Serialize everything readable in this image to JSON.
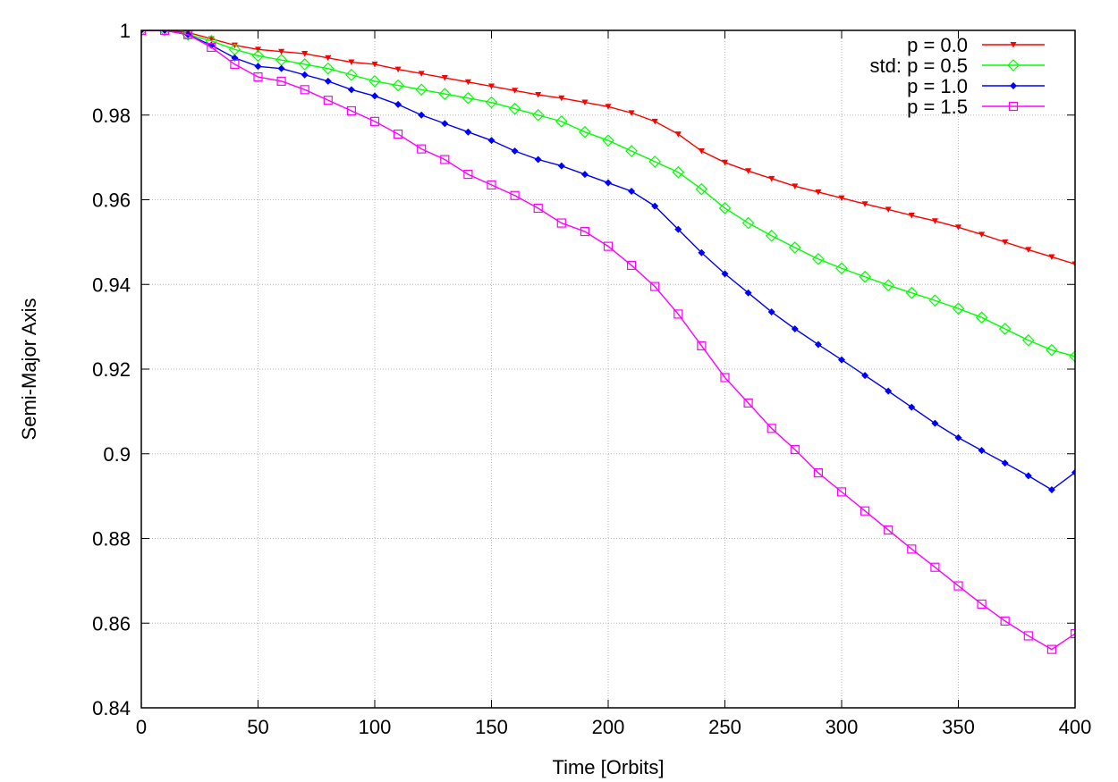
{
  "chart_data": {
    "type": "line",
    "title": "",
    "xlabel": "Time [Orbits]",
    "ylabel": "Semi-Major Axis",
    "xlim": [
      0,
      400
    ],
    "ylim": [
      0.84,
      1.0
    ],
    "xticks": [
      0,
      50,
      100,
      150,
      200,
      250,
      300,
      350,
      400
    ],
    "xtick_labels": [
      "0",
      "50",
      "100",
      "150",
      "200",
      "250",
      "300",
      "350",
      "400"
    ],
    "yticks": [
      0.84,
      0.86,
      0.88,
      0.9,
      0.92,
      0.94,
      0.96,
      0.98,
      1.0
    ],
    "ytick_labels": [
      "0.84",
      "0.86",
      "0.88",
      "0.9",
      "0.92",
      "0.94",
      "0.96",
      "0.98",
      "1"
    ],
    "grid": true,
    "legend_position": "top-right",
    "series": [
      {
        "name": "p = 0.0",
        "color": "#ff0000",
        "marker": "triangle-down",
        "x": [
          0,
          10,
          20,
          30,
          40,
          50,
          60,
          70,
          80,
          90,
          100,
          110,
          120,
          130,
          140,
          150,
          160,
          170,
          180,
          190,
          200,
          210,
          220,
          230,
          240,
          250,
          260,
          270,
          280,
          290,
          300,
          310,
          320,
          330,
          340,
          350,
          360,
          370,
          380,
          390,
          400
        ],
        "y": [
          1.0,
          1.0,
          0.9995,
          0.998,
          0.9965,
          0.9955,
          0.995,
          0.9945,
          0.9935,
          0.9925,
          0.992,
          0.9908,
          0.9898,
          0.9888,
          0.9878,
          0.9868,
          0.9858,
          0.9848,
          0.984,
          0.983,
          0.982,
          0.9805,
          0.9785,
          0.9755,
          0.9715,
          0.9688,
          0.9668,
          0.965,
          0.9632,
          0.9618,
          0.9604,
          0.959,
          0.9577,
          0.9563,
          0.955,
          0.9535,
          0.9518,
          0.95,
          0.9482,
          0.9465,
          0.9448
        ]
      },
      {
        "name": "std: p = 0.5",
        "color": "#00ff00",
        "marker": "diamond-open",
        "x": [
          0,
          10,
          20,
          30,
          40,
          50,
          60,
          70,
          80,
          90,
          100,
          110,
          120,
          130,
          140,
          150,
          160,
          170,
          180,
          190,
          200,
          210,
          220,
          230,
          240,
          250,
          260,
          270,
          280,
          290,
          300,
          310,
          320,
          330,
          340,
          350,
          360,
          370,
          380,
          390,
          400
        ],
        "y": [
          1.0,
          1.0,
          0.999,
          0.9975,
          0.9955,
          0.994,
          0.993,
          0.992,
          0.991,
          0.9895,
          0.988,
          0.987,
          0.986,
          0.985,
          0.984,
          0.983,
          0.9815,
          0.98,
          0.9785,
          0.976,
          0.974,
          0.9715,
          0.969,
          0.9665,
          0.9625,
          0.958,
          0.9545,
          0.9515,
          0.9487,
          0.946,
          0.9438,
          0.9418,
          0.9398,
          0.938,
          0.9362,
          0.9343,
          0.9322,
          0.9295,
          0.9268,
          0.9245,
          0.923
        ]
      },
      {
        "name": "p = 1.0",
        "color": "#0000ff",
        "marker": "diamond-filled",
        "x": [
          0,
          10,
          20,
          30,
          40,
          50,
          60,
          70,
          80,
          90,
          100,
          110,
          120,
          130,
          140,
          150,
          160,
          170,
          180,
          190,
          200,
          210,
          220,
          230,
          240,
          250,
          260,
          270,
          280,
          290,
          300,
          310,
          320,
          330,
          340,
          350,
          360,
          370,
          380,
          390,
          400
        ],
        "y": [
          1.0,
          1.0,
          0.999,
          0.9965,
          0.9935,
          0.9915,
          0.991,
          0.9895,
          0.988,
          0.986,
          0.9845,
          0.9825,
          0.98,
          0.978,
          0.976,
          0.974,
          0.9715,
          0.9695,
          0.968,
          0.966,
          0.964,
          0.962,
          0.9585,
          0.953,
          0.9475,
          0.9425,
          0.938,
          0.9335,
          0.9295,
          0.9258,
          0.9222,
          0.9185,
          0.9148,
          0.911,
          0.9072,
          0.9038,
          0.9008,
          0.8978,
          0.8948,
          0.8915,
          0.8956
        ]
      },
      {
        "name": "p = 1.5",
        "color": "#ff00ff",
        "marker": "square-open",
        "x": [
          0,
          10,
          20,
          30,
          40,
          50,
          60,
          70,
          80,
          90,
          100,
          110,
          120,
          130,
          140,
          150,
          160,
          170,
          180,
          190,
          200,
          210,
          220,
          230,
          240,
          250,
          260,
          270,
          280,
          290,
          300,
          310,
          320,
          330,
          340,
          350,
          360,
          370,
          380,
          390,
          400
        ],
        "y": [
          1.0,
          1.0,
          0.999,
          0.996,
          0.992,
          0.989,
          0.988,
          0.986,
          0.9835,
          0.981,
          0.9785,
          0.9755,
          0.972,
          0.9695,
          0.966,
          0.9635,
          0.961,
          0.958,
          0.9545,
          0.9525,
          0.949,
          0.9445,
          0.9395,
          0.933,
          0.9255,
          0.918,
          0.912,
          0.906,
          0.901,
          0.8955,
          0.891,
          0.8865,
          0.882,
          0.8775,
          0.8732,
          0.8688,
          0.8645,
          0.8605,
          0.857,
          0.8538,
          0.8575
        ]
      }
    ]
  }
}
